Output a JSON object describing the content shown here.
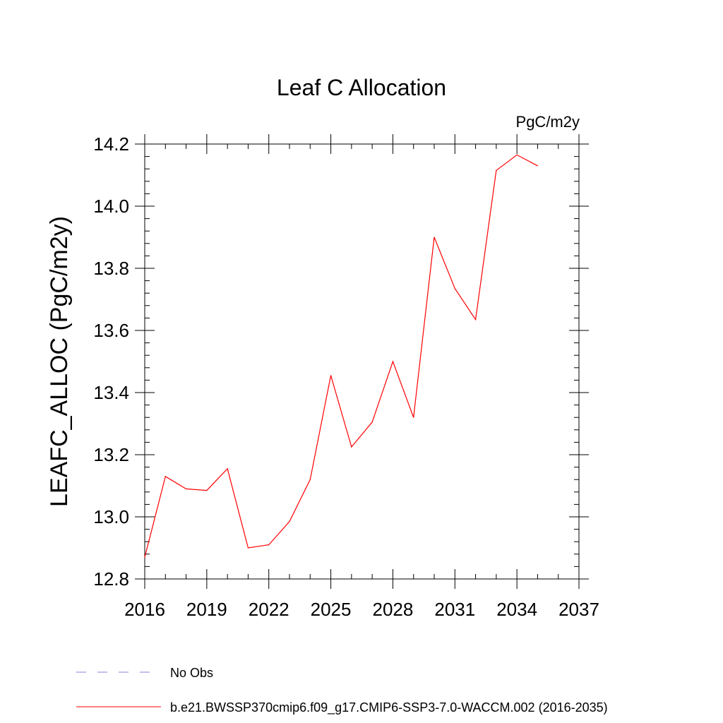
{
  "colors": {
    "series": "#ff0000",
    "obs": "#8a7fd8",
    "axis": "#000000",
    "background": "#ffffff"
  },
  "chart_data": {
    "type": "line",
    "title": "Leaf C Allocation",
    "units": "PgC/m2y",
    "ylabel": "LEAFC_ALLOC  (PgC/m2y)",
    "xlabel": "",
    "xlim": [
      2016,
      2037
    ],
    "ylim": [
      12.8,
      14.2
    ],
    "xticks": [
      2016,
      2019,
      2022,
      2025,
      2028,
      2031,
      2034,
      2037
    ],
    "yticks": [
      12.8,
      13.0,
      13.2,
      13.4,
      13.6,
      13.8,
      14.0,
      14.2
    ],
    "ytick_labels": [
      "12.8",
      "13.0",
      "13.2",
      "13.4",
      "13.6",
      "13.8",
      "14.0",
      "14.2"
    ],
    "x_minor_step": 1,
    "y_minor_step": 0.04,
    "grid": false,
    "legend_position": "bottom",
    "series": [
      {
        "name": "b.e21.BWSSP370cmip6.f09_g17.CMIP6-SSP3-7.0-WACCM.002 (2016-2035)",
        "style": "solid",
        "x": [
          2016,
          2017,
          2018,
          2019,
          2020,
          2021,
          2022,
          2023,
          2024,
          2025,
          2026,
          2027,
          2028,
          2029,
          2030,
          2031,
          2032,
          2033,
          2034,
          2035
        ],
        "values": [
          12.87,
          13.13,
          13.09,
          13.085,
          13.155,
          12.9,
          12.91,
          12.985,
          13.12,
          13.455,
          13.225,
          13.305,
          13.5,
          13.32,
          13.9,
          13.735,
          13.635,
          14.115,
          14.165,
          14.13
        ]
      }
    ],
    "legend": [
      {
        "label": "No Obs",
        "style": "dashed"
      },
      {
        "label": "b.e21.BWSSP370cmip6.f09_g17.CMIP6-SSP3-7.0-WACCM.002 (2016-2035)",
        "style": "solid"
      }
    ]
  }
}
